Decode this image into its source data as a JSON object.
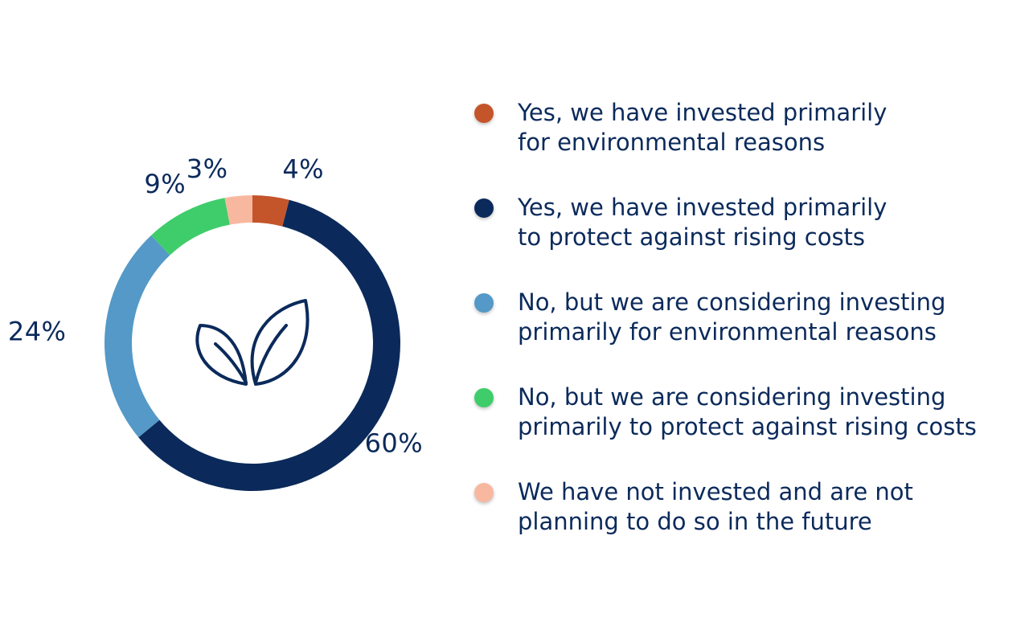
{
  "chart_data": {
    "type": "pie",
    "style": "donut",
    "slices": [
      {
        "label": "Yes, we have invested primarily\nfor environmental reasons",
        "value": 4,
        "value_label": "4%",
        "color": "#c4552a"
      },
      {
        "label": "Yes, we have invested primarily\nto protect against rising costs",
        "value": 60,
        "value_label": "60%",
        "color": "#0b2a5b"
      },
      {
        "label": "No, but we are considering investing\nprimarily for environmental reasons",
        "value": 24,
        "value_label": "24%",
        "color": "#5499c7"
      },
      {
        "label": "No, but we are considering investing\nprimarily to protect against rising costs",
        "value": 9,
        "value_label": "9%",
        "color": "#3fcd6b"
      },
      {
        "label": "We have not invested and are not\nplanning to do so in the future",
        "value": 3,
        "value_label": "3%",
        "color": "#f8b8a0"
      }
    ],
    "legend_position": "right",
    "center_icon": "leaves-icon"
  }
}
